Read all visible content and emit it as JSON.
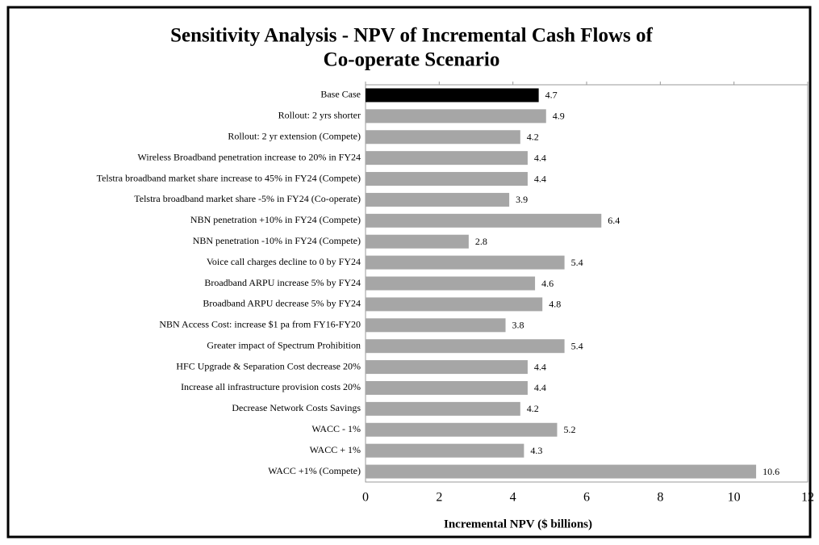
{
  "chart_data": {
    "type": "bar",
    "orientation": "horizontal",
    "title": "Sensitivity Analysis - NPV of Incremental Cash Flows of",
    "subtitle": "Co-operate Scenario",
    "xlabel": "Incremental NPV ($ billions)",
    "categories": [
      "Base Case",
      "Rollout: 2 yrs shorter",
      "Rollout: 2 yr extension (Compete)",
      "Wireless Broadband penetration increase to 20% in FY24",
      "Telstra broadband market share increase to 45% in FY24 (Compete)",
      "Telstra broadband market share -5% in FY24 (Co-operate)",
      "NBN penetration +10% in FY24 (Compete)",
      "NBN penetration -10% in FY24 (Compete)",
      "Voice call charges decline to 0 by FY24",
      "Broadband ARPU increase 5% by FY24",
      "Broadband ARPU decrease 5% by FY24",
      "NBN Access Cost: increase $1 pa from FY16-FY20",
      "Greater impact of Spectrum Prohibition",
      "HFC Upgrade & Separation Cost decrease 20%",
      "Increase all infrastructure provision costs 20%",
      "Decrease Network Costs Savings",
      "WACC  - 1%",
      "WACC  + 1%",
      "WACC +1% (Compete)"
    ],
    "values": [
      4.7,
      4.9,
      4.2,
      4.4,
      4.4,
      3.9,
      6.4,
      2.8,
      5.4,
      4.6,
      4.8,
      3.8,
      5.4,
      4.4,
      4.4,
      4.2,
      5.2,
      4.3,
      10.6
    ],
    "colors": [
      "#000000",
      "#a6a6a6",
      "#a6a6a6",
      "#a6a6a6",
      "#a6a6a6",
      "#a6a6a6",
      "#a6a6a6",
      "#a6a6a6",
      "#a6a6a6",
      "#a6a6a6",
      "#a6a6a6",
      "#a6a6a6",
      "#a6a6a6",
      "#a6a6a6",
      "#a6a6a6",
      "#a6a6a6",
      "#a6a6a6",
      "#a6a6a6",
      "#a6a6a6"
    ],
    "xlim": [
      0,
      12
    ],
    "xticks": [
      0,
      2,
      4,
      6,
      8,
      10,
      12
    ]
  }
}
